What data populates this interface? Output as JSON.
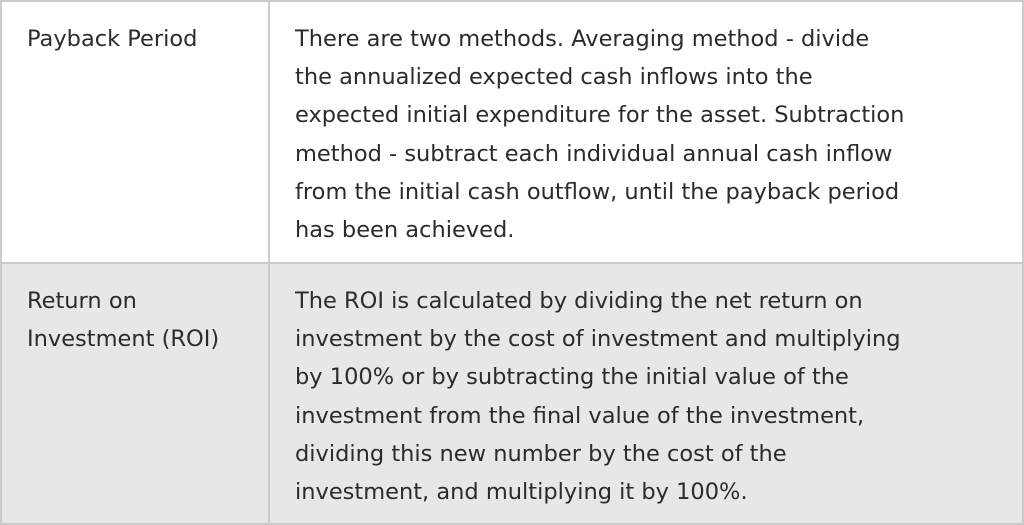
{
  "rows": [
    {
      "term_lines": [
        "Payback Period"
      ],
      "description_lines": [
        "There are two methods. Averaging method - divide",
        "the annualized expected cash inflows into the",
        "expected initial expenditure for the asset. Subtraction",
        "method - subtract each individual annual cash inflow",
        "from the initial cash outflow, until the payback period",
        "has been achieved."
      ]
    },
    {
      "term_lines": [
        "Return on",
        "Investment (ROI)"
      ],
      "description_lines": [
        "The ROI is calculated by dividing the net return on",
        "investment by the cost of investment and multiplying",
        "by 100% or by subtracting the initial value of the",
        "investment from the final value of the investment,",
        "dividing this new number by the cost of the",
        "investment, and multiplying it by 100%."
      ]
    }
  ],
  "colors": {
    "border": "#cbcbcb",
    "alt_row": "#e6e7e9",
    "text": "#2b2b2b"
  }
}
